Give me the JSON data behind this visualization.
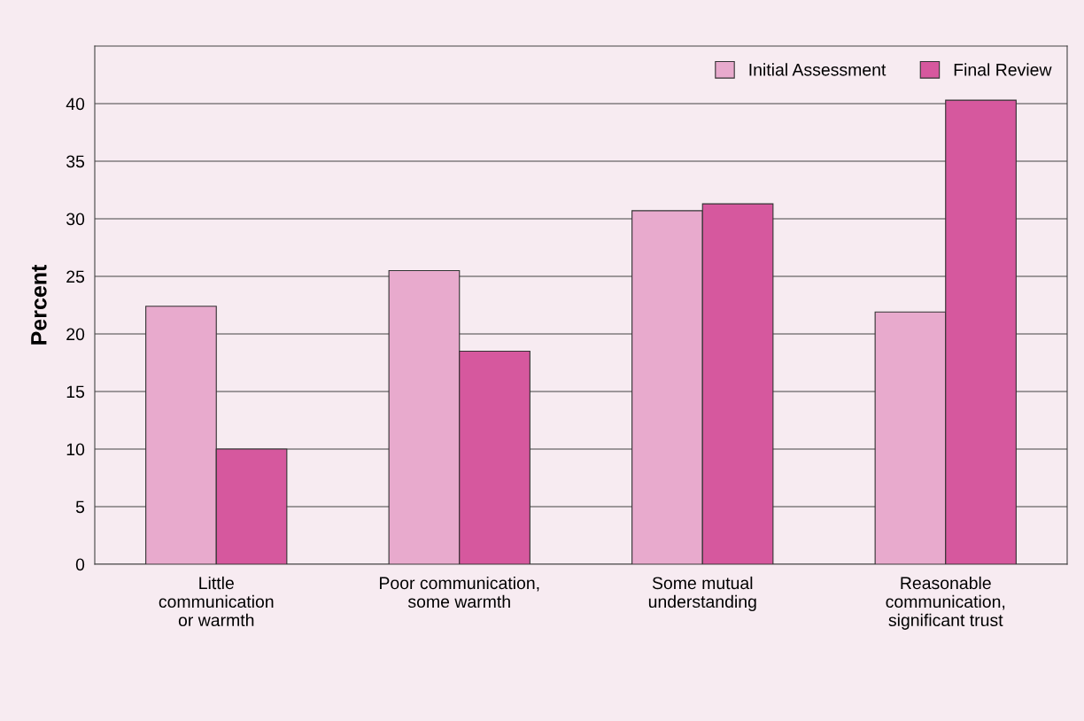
{
  "chart_data": {
    "type": "bar",
    "ylabel": "Percent",
    "categories": [
      "Little\ncommunication\nor warmth",
      "Poor communication,\nsome warmth",
      "Some mutual\nunderstanding",
      "Reasonable\ncommunication,\nsignificant trust"
    ],
    "series": [
      {
        "name": "Initial Assessment",
        "color": "#e8aacd",
        "values": [
          22.4,
          25.5,
          30.7,
          21.9
        ]
      },
      {
        "name": "Final Review",
        "color": "#d6589e",
        "values": [
          10.0,
          18.5,
          31.3,
          40.3
        ]
      }
    ],
    "ylim": [
      0,
      45
    ],
    "yticks": [
      0,
      5,
      10,
      15,
      20,
      25,
      30,
      35,
      40
    ],
    "grid": "y",
    "legend": "top right"
  }
}
